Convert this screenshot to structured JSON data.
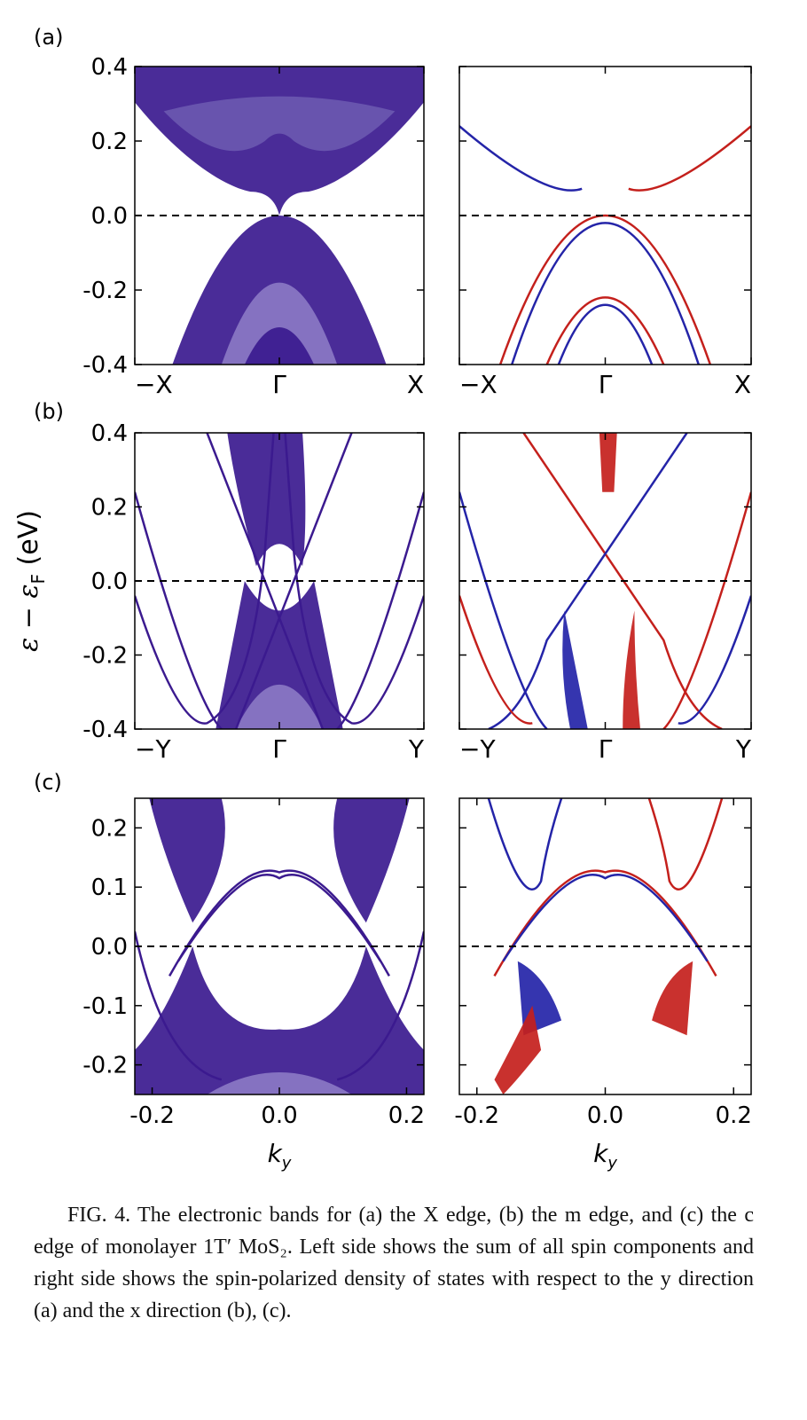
{
  "figure": {
    "rows": [
      {
        "label": "(a)",
        "yticks": [
          "0.4",
          "0.2",
          "0.0",
          "-0.2",
          "-0.4"
        ],
        "xticks": [
          "−X",
          "Γ",
          "X"
        ]
      },
      {
        "label": "(b)",
        "yticks": [
          "0.4",
          "0.2",
          "0.0",
          "-0.2",
          "-0.4"
        ],
        "xticks": [
          "−Y",
          "Γ",
          "Y"
        ]
      },
      {
        "label": "(c)",
        "yticks": [
          "0.2",
          "0.1",
          "0.0",
          "-0.1",
          "-0.2"
        ],
        "xticks": [
          "-0.2",
          "0.0",
          "0.2"
        ]
      }
    ],
    "ylabel": {
      "main": "ε − ε",
      "sub": "F",
      "unit": " (eV)"
    },
    "xlabel": {
      "main": "k",
      "sub": "y"
    },
    "caption": "FIG. 4.  The electronic bands for (a) the X edge, (b) the m edge, and (c) the c edge of monolayer 1T′ MoS₂. Left side shows the sum of all spin components and right side shows the spin-polarized density of states with respect to the y direction (a) and the x direction (b), (c)."
  }
}
